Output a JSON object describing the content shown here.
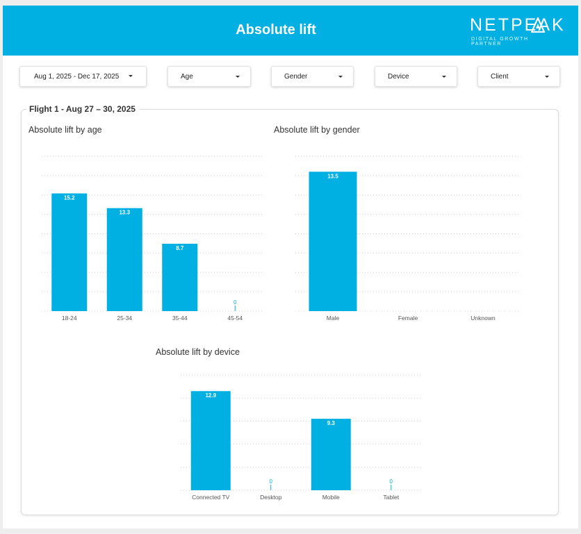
{
  "header": {
    "title": "Absolute lift",
    "logo_text": "NETPEAK",
    "logo_tagline": "DIGITAL GROWTH PARTNER"
  },
  "filters": [
    {
      "label": "Aug 1, 2025 - Dec 17, 2025"
    },
    {
      "label": "Age"
    },
    {
      "label": "Gender"
    },
    {
      "label": "Device"
    },
    {
      "label": "Client"
    }
  ],
  "flight": {
    "title": "Flight 1 - Aug 27 – 30, 2025"
  },
  "colors": {
    "accent": "#00b0e3",
    "grid": "#d0d0d0"
  },
  "chart_data": [
    {
      "type": "bar",
      "title": "Absolute lift by age",
      "categories": [
        "18-24",
        "25-34",
        "35-44",
        "45-54"
      ],
      "values": [
        15.2,
        13.3,
        8.7,
        0
      ],
      "ylim": [
        0,
        20
      ],
      "grid": true,
      "data_labels": true
    },
    {
      "type": "bar",
      "title": "Absolute lift by gender",
      "categories": [
        "Male",
        "Female",
        "Unknown"
      ],
      "values": [
        13.5,
        null,
        null
      ],
      "ylim": [
        0,
        15
      ],
      "grid": true,
      "data_labels": true
    },
    {
      "type": "bar",
      "title": "Absolute lift by device",
      "categories": [
        "Connected TV",
        "Desktop",
        "Mobile",
        "Tablet"
      ],
      "values": [
        12.9,
        0,
        9.3,
        0
      ],
      "ylim": [
        0,
        15
      ],
      "grid": true,
      "data_labels": true
    }
  ]
}
